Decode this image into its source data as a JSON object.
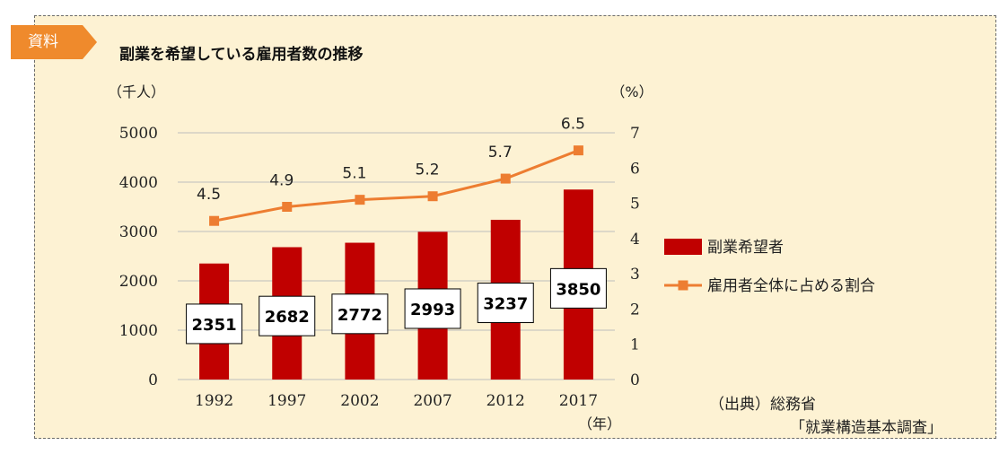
{
  "badge": "資料",
  "chart_data": {
    "type": "bar",
    "title": "副業を希望している雇用者数の推移",
    "categories": [
      "1992",
      "1997",
      "2002",
      "2007",
      "2012",
      "2017"
    ],
    "xlabel": "（年）",
    "ylabel": "（千人）",
    "y2label": "（%）",
    "ylim": [
      0,
      5000
    ],
    "y2lim": [
      0,
      7
    ],
    "yticks": [
      "0",
      "1000",
      "2000",
      "3000",
      "4000",
      "5000"
    ],
    "y2ticks": [
      "0",
      "1",
      "2",
      "3",
      "4",
      "5",
      "6",
      "7"
    ],
    "series": [
      {
        "name": "副業希望者",
        "type": "bar",
        "axis": "left",
        "color": "#c00000",
        "values": [
          2351,
          2682,
          2772,
          2993,
          3237,
          3850
        ]
      },
      {
        "name": "雇用者全体に占める割合",
        "type": "line",
        "axis": "right",
        "color": "#ed7d31",
        "values": [
          4.5,
          4.9,
          5.1,
          5.2,
          5.7,
          6.5
        ],
        "labels": [
          "4.5",
          "4.9",
          "5.1",
          "5.2",
          "5.7",
          "6.5"
        ]
      }
    ]
  },
  "source": {
    "line1": "（出典）総務省",
    "line2": "「就業構造基本調査」"
  }
}
